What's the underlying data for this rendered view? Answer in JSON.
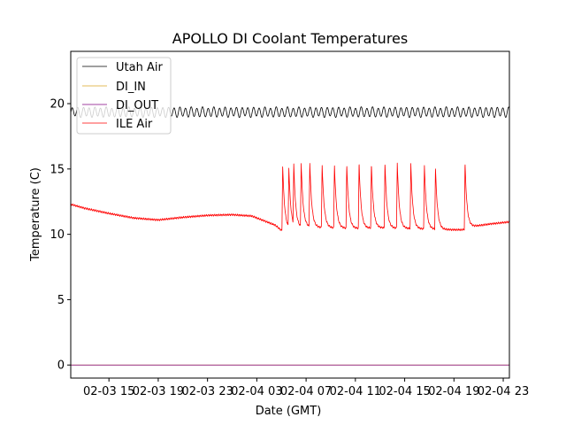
{
  "chart_data": {
    "type": "line",
    "title": "APOLLO DI Coolant Temperatures",
    "xlabel": "Date (GMT)",
    "ylabel": "Temperature (C)",
    "x_unit": "hours since 2024-02-03 00:00 GMT",
    "xlim": [
      11.9,
      47.5
    ],
    "ylim": [
      -1.0,
      24.0
    ],
    "yticks": [
      0,
      5,
      10,
      15,
      20
    ],
    "xticks": [
      {
        "value": 15,
        "label": "02-03 15"
      },
      {
        "value": 19,
        "label": "02-03 19"
      },
      {
        "value": 23,
        "label": "02-03 23"
      },
      {
        "value": 27,
        "label": "02-04 03"
      },
      {
        "value": 31,
        "label": "02-04 07"
      },
      {
        "value": 35,
        "label": "02-04 11"
      },
      {
        "value": 39,
        "label": "02-04 15"
      },
      {
        "value": 43,
        "label": "02-04 19"
      },
      {
        "value": 47,
        "label": "02-04 23"
      }
    ],
    "legend_position": "top-left",
    "series": [
      {
        "name": "Utah Air",
        "color": "#000000",
        "pattern": "oscillating",
        "base": 19.35,
        "amplitude": 0.35,
        "period_hours": 0.46,
        "x_range": [
          11.9,
          47.5
        ]
      },
      {
        "name": "DI_IN",
        "color": "#daa520",
        "pattern": "flat",
        "value": 0.0,
        "x_range": [
          11.9,
          47.5
        ]
      },
      {
        "name": "DI_OUT",
        "color": "#800080",
        "pattern": "flat",
        "value": 0.0,
        "x_range": [
          11.9,
          47.5
        ]
      },
      {
        "name": "ILE Air",
        "color": "#ff0000",
        "pattern": "baseline_with_spikes",
        "baseline": {
          "x": [
            11.9,
            13.0,
            15.0,
            17.0,
            19.0,
            21.0,
            23.0,
            25.0,
            26.6,
            28.5,
            29.0,
            31.0,
            33.0,
            35.0,
            37.0,
            39.0,
            41.0,
            43.0,
            43.7,
            44.5,
            46.0,
            47.5
          ],
          "y": [
            12.3,
            12.0,
            11.6,
            11.25,
            11.1,
            11.3,
            11.45,
            11.5,
            11.4,
            10.7,
            10.3,
            10.55,
            10.5,
            10.45,
            10.5,
            10.45,
            10.4,
            10.35,
            10.35,
            10.6,
            10.8,
            10.95
          ]
        },
        "spikes": [
          {
            "x": 29.1,
            "peak": 15.3
          },
          {
            "x": 29.6,
            "peak": 14.9
          },
          {
            "x": 30.0,
            "peak": 15.0
          },
          {
            "x": 30.6,
            "peak": 15.4
          },
          {
            "x": 31.3,
            "peak": 15.5
          },
          {
            "x": 32.3,
            "peak": 15.4
          },
          {
            "x": 33.3,
            "peak": 15.4
          },
          {
            "x": 34.3,
            "peak": 15.4
          },
          {
            "x": 35.3,
            "peak": 15.5
          },
          {
            "x": 36.3,
            "peak": 15.4
          },
          {
            "x": 37.4,
            "peak": 15.5
          },
          {
            "x": 38.4,
            "peak": 15.5
          },
          {
            "x": 39.5,
            "peak": 15.4
          },
          {
            "x": 40.6,
            "peak": 15.4
          },
          {
            "x": 41.5,
            "peak": 15.1
          },
          {
            "x": 43.9,
            "peak": 15.5
          }
        ]
      }
    ]
  }
}
